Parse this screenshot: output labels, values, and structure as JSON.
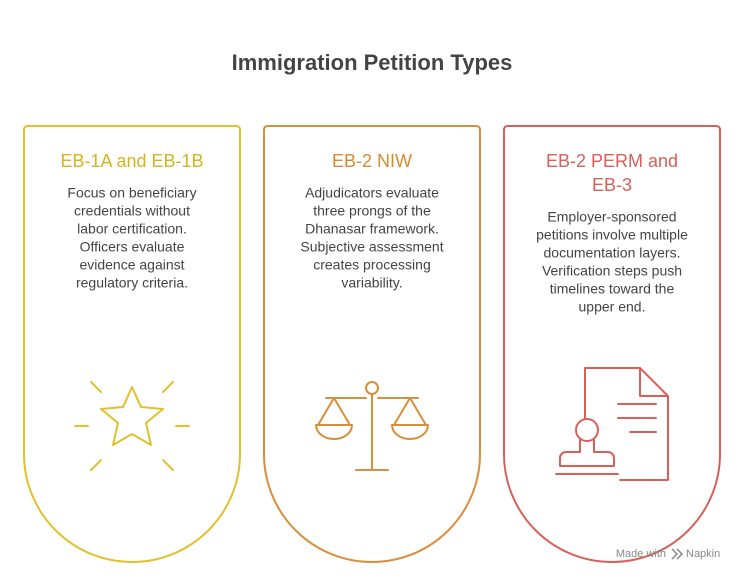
{
  "header": {
    "title": "Immigration Petition Types"
  },
  "cards": [
    {
      "title": [
        "EB-1A and EB-1B"
      ],
      "color": "#e2c02c",
      "title_color": "#d6b41e",
      "text": [
        "Focus on beneficiary",
        "credentials without",
        "labor certification.",
        "Officers evaluate",
        "evidence against",
        "regulatory criteria."
      ]
    },
    {
      "title": [
        "EB-2 NIW"
      ],
      "color": "#d98e3c",
      "title_color": "#d98a30",
      "text": [
        "Adjudicators evaluate",
        "three prongs of the",
        "Dhanasar framework.",
        "Subjective assessment",
        "creates processing",
        "variability."
      ]
    },
    {
      "title": [
        "EB-2 PERM and",
        "EB-3"
      ],
      "color": "#d9605a",
      "title_color": "#d95f58",
      "text": [
        "Employer-sponsored",
        "petitions involve multiple",
        "documentation layers.",
        "Verification steps push",
        "timelines toward the",
        "upper end."
      ]
    }
  ],
  "footer": {
    "made_with": "Made with",
    "brand": "Napkin"
  }
}
